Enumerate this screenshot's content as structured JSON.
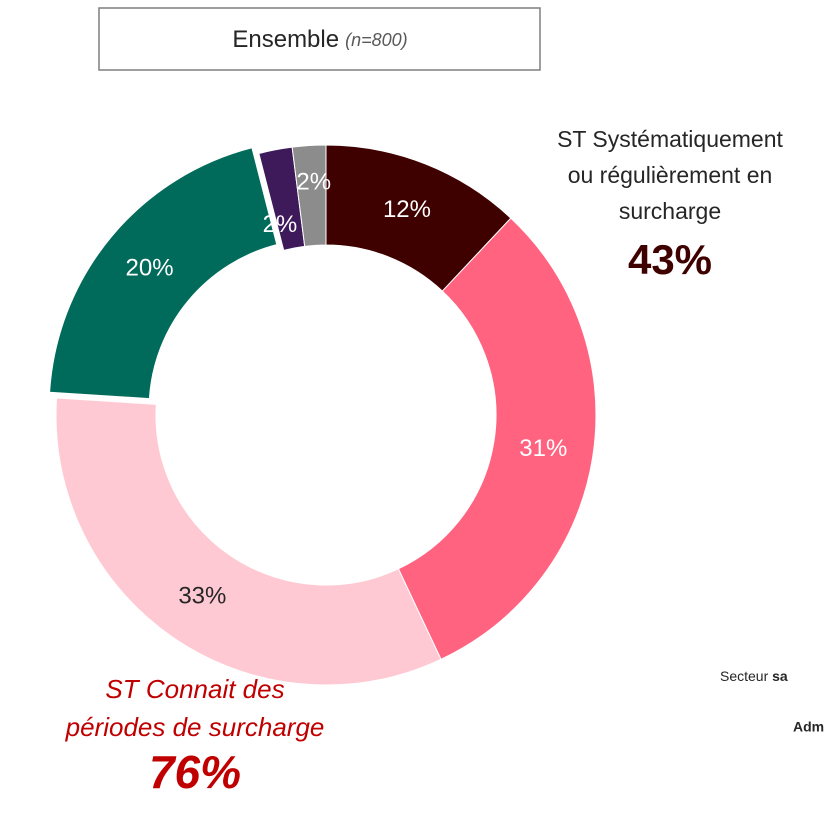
{
  "chart_data": {
    "type": "donut",
    "title": "Ensemble",
    "subtitle": "(n=800)",
    "values": [
      12,
      31,
      33,
      20,
      2,
      2
    ],
    "value_labels": [
      "12%",
      "31%",
      "33%",
      "20%",
      "2%",
      "2%"
    ],
    "colors": [
      "#3f0000",
      "#ff6380",
      "#ffc9d3",
      "#006b5a",
      "#3f1a5b",
      "#8c8c8c"
    ],
    "annotations": [
      {
        "lines": [
          "ST Systématiquement",
          "ou régulièrement en",
          "surcharge"
        ],
        "value": 43,
        "value_label": "43%"
      },
      {
        "lines": [
          "ST Connait des",
          "périodes de surcharge"
        ],
        "value": 76,
        "value_label": "76%"
      }
    ],
    "side_texts": [
      {
        "text": "Secteur ",
        "bold": "sa"
      },
      {
        "bold": "Adm"
      }
    ]
  }
}
